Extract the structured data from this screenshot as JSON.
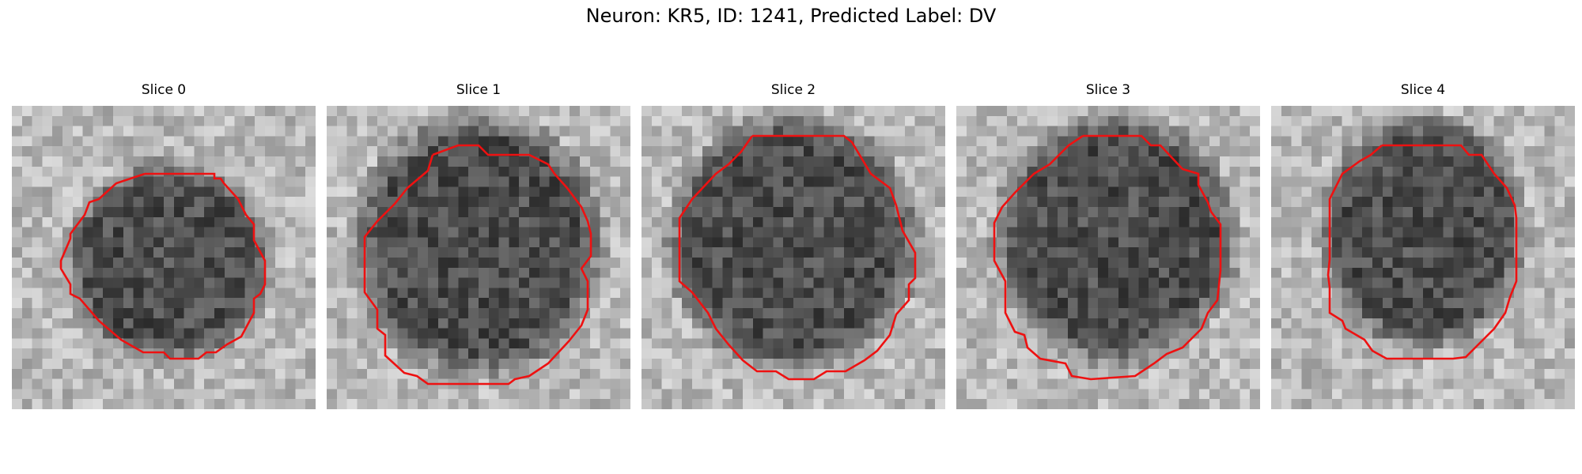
{
  "figure": {
    "title": "Neuron: KR5, ID: 1241, Predicted Label: DV",
    "contour_color": "#ee1111",
    "image_colormap": "gray",
    "grid_size": 30,
    "panels": [
      {
        "title": "Slice 0"
      },
      {
        "title": "Slice 1"
      },
      {
        "title": "Slice 2"
      },
      {
        "title": "Slice 3"
      },
      {
        "title": "Slice 4"
      }
    ]
  }
}
